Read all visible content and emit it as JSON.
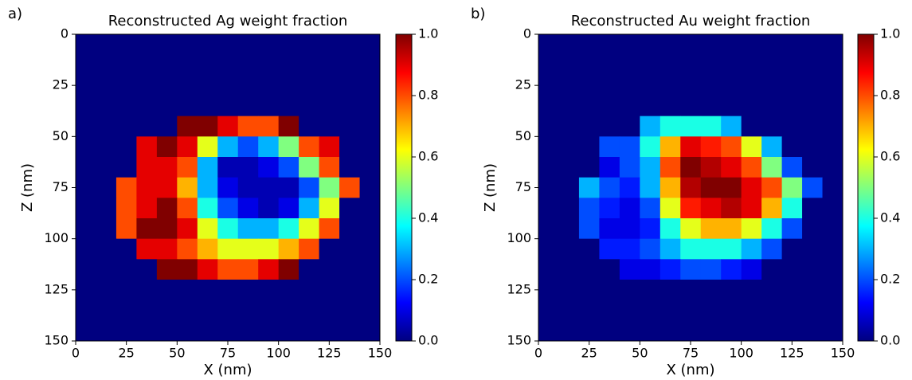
{
  "chart_data": [
    {
      "type": "heatmap",
      "panel_label": "a)",
      "title": "Reconstructed Ag weight fraction",
      "xlabel": "X (nm)",
      "ylabel": "Z (nm)",
      "colormap": "jet",
      "xlim": [
        0,
        150
      ],
      "ylim": [
        150,
        0
      ],
      "xticks": [
        0,
        25,
        50,
        75,
        100,
        125,
        150
      ],
      "yticks": [
        0,
        25,
        50,
        75,
        100,
        125,
        150
      ],
      "zlim": [
        0,
        1
      ],
      "zticks": [
        {
          "value": 0,
          "label": "0.0"
        },
        {
          "value": 0.2,
          "label": "0.2"
        },
        {
          "value": 0.4,
          "label": "0.4"
        },
        {
          "value": 0.6,
          "label": "0.6"
        },
        {
          "value": 0.8,
          "label": "0.8"
        },
        {
          "value": 1,
          "label": "1.0"
        }
      ],
      "values": [
        [
          0,
          0,
          0,
          0,
          0,
          0,
          0,
          0,
          0,
          0,
          0,
          0,
          0,
          0,
          0
        ],
        [
          0,
          0,
          0,
          0,
          0,
          0,
          0,
          0,
          0,
          0,
          0,
          0,
          0,
          0,
          0
        ],
        [
          0,
          0,
          0,
          0,
          0,
          0,
          0,
          0,
          0,
          0,
          0,
          0,
          0,
          0,
          0
        ],
        [
          0,
          0,
          0,
          0,
          0,
          0,
          0,
          0,
          0,
          0,
          0,
          0,
          0,
          0,
          0
        ],
        [
          0,
          0,
          0,
          0,
          0,
          1,
          1,
          0.9,
          0.8,
          0.8,
          1,
          0,
          0,
          0,
          0
        ],
        [
          0,
          0,
          0,
          0.9,
          1,
          0.9,
          0.6,
          0.3,
          0.2,
          0.3,
          0.5,
          0.8,
          0.9,
          0,
          0
        ],
        [
          0,
          0,
          0,
          0.9,
          0.9,
          0.8,
          0.3,
          0.05,
          0.05,
          0.1,
          0.2,
          0.5,
          0.8,
          0,
          0
        ],
        [
          0,
          0,
          0.8,
          0.9,
          0.9,
          0.7,
          0.3,
          0.1,
          0.05,
          0.05,
          0.05,
          0.2,
          0.5,
          0.8,
          0
        ],
        [
          0,
          0,
          0.8,
          0.9,
          1,
          0.8,
          0.4,
          0.2,
          0.1,
          0.05,
          0.1,
          0.3,
          0.6,
          0,
          0
        ],
        [
          0,
          0,
          0.8,
          1,
          1,
          0.9,
          0.6,
          0.4,
          0.3,
          0.3,
          0.4,
          0.6,
          0.8,
          0,
          0
        ],
        [
          0,
          0,
          0,
          0.9,
          0.9,
          0.8,
          0.7,
          0.6,
          0.6,
          0.6,
          0.7,
          0.8,
          0,
          0,
          0
        ],
        [
          0,
          0,
          0,
          0,
          1,
          1,
          0.9,
          0.8,
          0.8,
          0.9,
          1,
          0,
          0,
          0,
          0
        ],
        [
          0,
          0,
          0,
          0,
          0,
          0,
          0,
          0,
          0,
          0,
          0,
          0,
          0,
          0,
          0
        ],
        [
          0,
          0,
          0,
          0,
          0,
          0,
          0,
          0,
          0,
          0,
          0,
          0,
          0,
          0,
          0
        ],
        [
          0,
          0,
          0,
          0,
          0,
          0,
          0,
          0,
          0,
          0,
          0,
          0,
          0,
          0,
          0
        ]
      ]
    },
    {
      "type": "heatmap",
      "panel_label": "b)",
      "title": "Reconstructed Au weight fraction",
      "xlabel": "X (nm)",
      "ylabel": "Z (nm)",
      "colormap": "jet",
      "xlim": [
        0,
        150
      ],
      "ylim": [
        150,
        0
      ],
      "xticks": [
        0,
        25,
        50,
        75,
        100,
        125,
        150
      ],
      "yticks": [
        0,
        25,
        50,
        75,
        100,
        125,
        150
      ],
      "zlim": [
        0,
        1
      ],
      "zticks": [
        {
          "value": 0,
          "label": "0.0"
        },
        {
          "value": 0.2,
          "label": "0.2"
        },
        {
          "value": 0.4,
          "label": "0.4"
        },
        {
          "value": 0.6,
          "label": "0.6"
        },
        {
          "value": 0.8,
          "label": "0.8"
        },
        {
          "value": 1,
          "label": "1.0"
        }
      ],
      "values": [
        [
          0,
          0,
          0,
          0,
          0,
          0,
          0,
          0,
          0,
          0,
          0,
          0,
          0,
          0,
          0
        ],
        [
          0,
          0,
          0,
          0,
          0,
          0,
          0,
          0,
          0,
          0,
          0,
          0,
          0,
          0,
          0
        ],
        [
          0,
          0,
          0,
          0,
          0,
          0,
          0,
          0,
          0,
          0,
          0,
          0,
          0,
          0,
          0
        ],
        [
          0,
          0,
          0,
          0,
          0,
          0,
          0,
          0,
          0,
          0,
          0,
          0,
          0,
          0,
          0
        ],
        [
          0,
          0,
          0,
          0,
          0,
          0.3,
          0.4,
          0.4,
          0.4,
          0.3,
          0,
          0,
          0,
          0,
          0
        ],
        [
          0,
          0,
          0,
          0.2,
          0.2,
          0.4,
          0.7,
          0.9,
          0.85,
          0.8,
          0.6,
          0.3,
          0,
          0,
          0
        ],
        [
          0,
          0,
          0,
          0.1,
          0.2,
          0.3,
          0.8,
          1,
          0.95,
          0.9,
          0.8,
          0.5,
          0.2,
          0,
          0
        ],
        [
          0,
          0,
          0.3,
          0.2,
          0.15,
          0.3,
          0.7,
          0.95,
          1,
          1,
          0.9,
          0.8,
          0.5,
          0.2,
          0
        ],
        [
          0,
          0,
          0.2,
          0.15,
          0.1,
          0.2,
          0.6,
          0.85,
          0.9,
          0.95,
          0.9,
          0.7,
          0.4,
          0,
          0
        ],
        [
          0,
          0,
          0.2,
          0.1,
          0.1,
          0.15,
          0.4,
          0.6,
          0.7,
          0.7,
          0.6,
          0.4,
          0.2,
          0,
          0
        ],
        [
          0,
          0,
          0,
          0.15,
          0.15,
          0.2,
          0.3,
          0.4,
          0.4,
          0.4,
          0.3,
          0.2,
          0,
          0,
          0
        ],
        [
          0,
          0,
          0,
          0,
          0.1,
          0.1,
          0.15,
          0.2,
          0.2,
          0.15,
          0.1,
          0,
          0,
          0,
          0
        ],
        [
          0,
          0,
          0,
          0,
          0,
          0,
          0,
          0,
          0,
          0,
          0,
          0,
          0,
          0,
          0
        ],
        [
          0,
          0,
          0,
          0,
          0,
          0,
          0,
          0,
          0,
          0,
          0,
          0,
          0,
          0,
          0
        ],
        [
          0,
          0,
          0,
          0,
          0,
          0,
          0,
          0,
          0,
          0,
          0,
          0,
          0,
          0,
          0
        ]
      ]
    }
  ]
}
